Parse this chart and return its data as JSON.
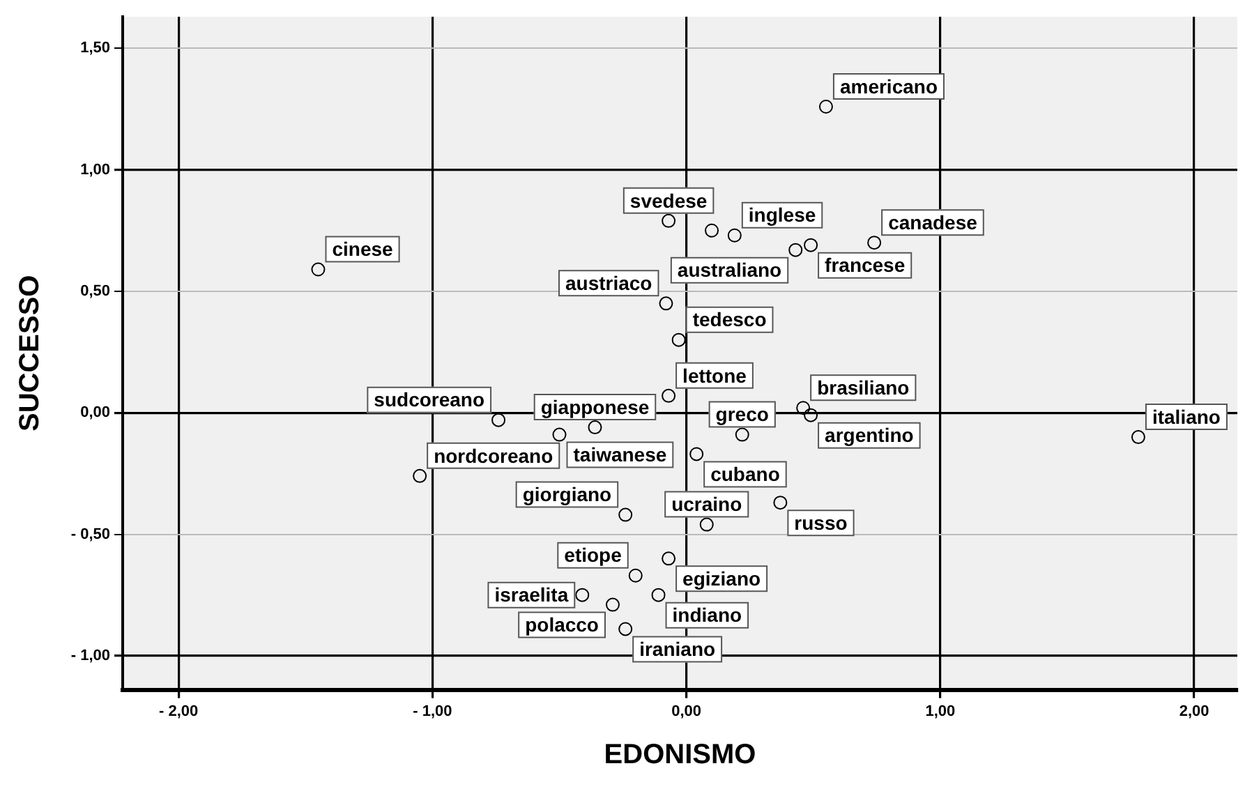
{
  "chart_data": {
    "type": "scatter",
    "xlabel": "EDONISMO",
    "ylabel": "SUCCESSO",
    "xlim": [
      -2.22,
      2.17
    ],
    "ylim": [
      -1.14,
      1.63
    ],
    "xticks": [
      {
        "value": -2,
        "label": "- 2,00"
      },
      {
        "value": -1,
        "label": "- 1,00"
      },
      {
        "value": 0,
        "label": "0,00"
      },
      {
        "value": 1,
        "label": "1,00"
      },
      {
        "value": 2,
        "label": "2,00"
      }
    ],
    "yticks": [
      {
        "value": -1,
        "label": "- 1,00"
      },
      {
        "value": -0.5,
        "label": "- 0,50"
      },
      {
        "value": 0,
        "label": "0,00"
      },
      {
        "value": 0.5,
        "label": "0,50"
      },
      {
        "value": 1,
        "label": "1,00"
      },
      {
        "value": 1.5,
        "label": "1,50"
      }
    ],
    "grid": true,
    "legend": false,
    "marker": "circle",
    "series": [
      {
        "color": "#000000",
        "x": [
          0.55,
          -0.07,
          0.1,
          0.19,
          0.43,
          0.49,
          0.74,
          -1.45,
          -0.08,
          -0.03,
          -0.07,
          -0.74,
          -0.36,
          -0.5,
          -1.05,
          -0.24,
          0.22,
          0.46,
          0.49,
          0.04,
          0.08,
          0.37,
          -0.2,
          -0.07,
          -0.11,
          -0.41,
          -0.29,
          -0.24,
          1.78
        ],
        "values": [
          1.26,
          0.79,
          0.75,
          0.73,
          0.67,
          0.69,
          0.7,
          0.59,
          0.45,
          0.3,
          0.07,
          -0.03,
          -0.06,
          -0.09,
          -0.26,
          -0.42,
          -0.09,
          0.02,
          -0.01,
          -0.17,
          -0.46,
          -0.37,
          -0.67,
          -0.6,
          -0.75,
          -0.75,
          -0.79,
          -0.89,
          -0.1
        ],
        "value_labels": [
          "americano",
          "svedese",
          null,
          "inglese",
          "australiano",
          "francese",
          "canadese",
          "cinese",
          "austriaco",
          "tedesco",
          "lettone",
          "sudcoreano",
          "giapponese",
          "taiwanese",
          "nordcoreano",
          "giorgiano",
          "greco",
          "brasiliano",
          "argentino",
          "cubano",
          "ucraino",
          "russo",
          "etiope",
          "egiziano",
          "indiano",
          "israelita",
          "polacco",
          "iraniano",
          "italiano"
        ]
      }
    ]
  }
}
